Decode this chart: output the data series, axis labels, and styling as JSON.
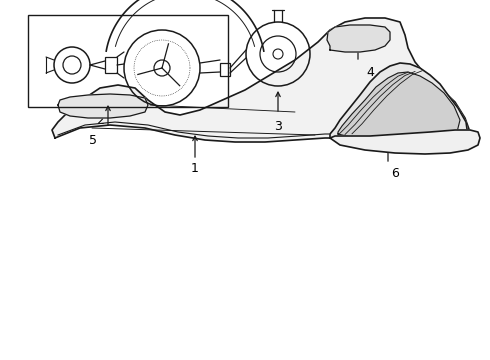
{
  "background_color": "#ffffff",
  "line_color": "#1a1a1a",
  "label_color": "#000000",
  "figsize": [
    4.9,
    3.6
  ],
  "dpi": 100,
  "xlim": [
    0,
    490
  ],
  "ylim": [
    0,
    360
  ]
}
